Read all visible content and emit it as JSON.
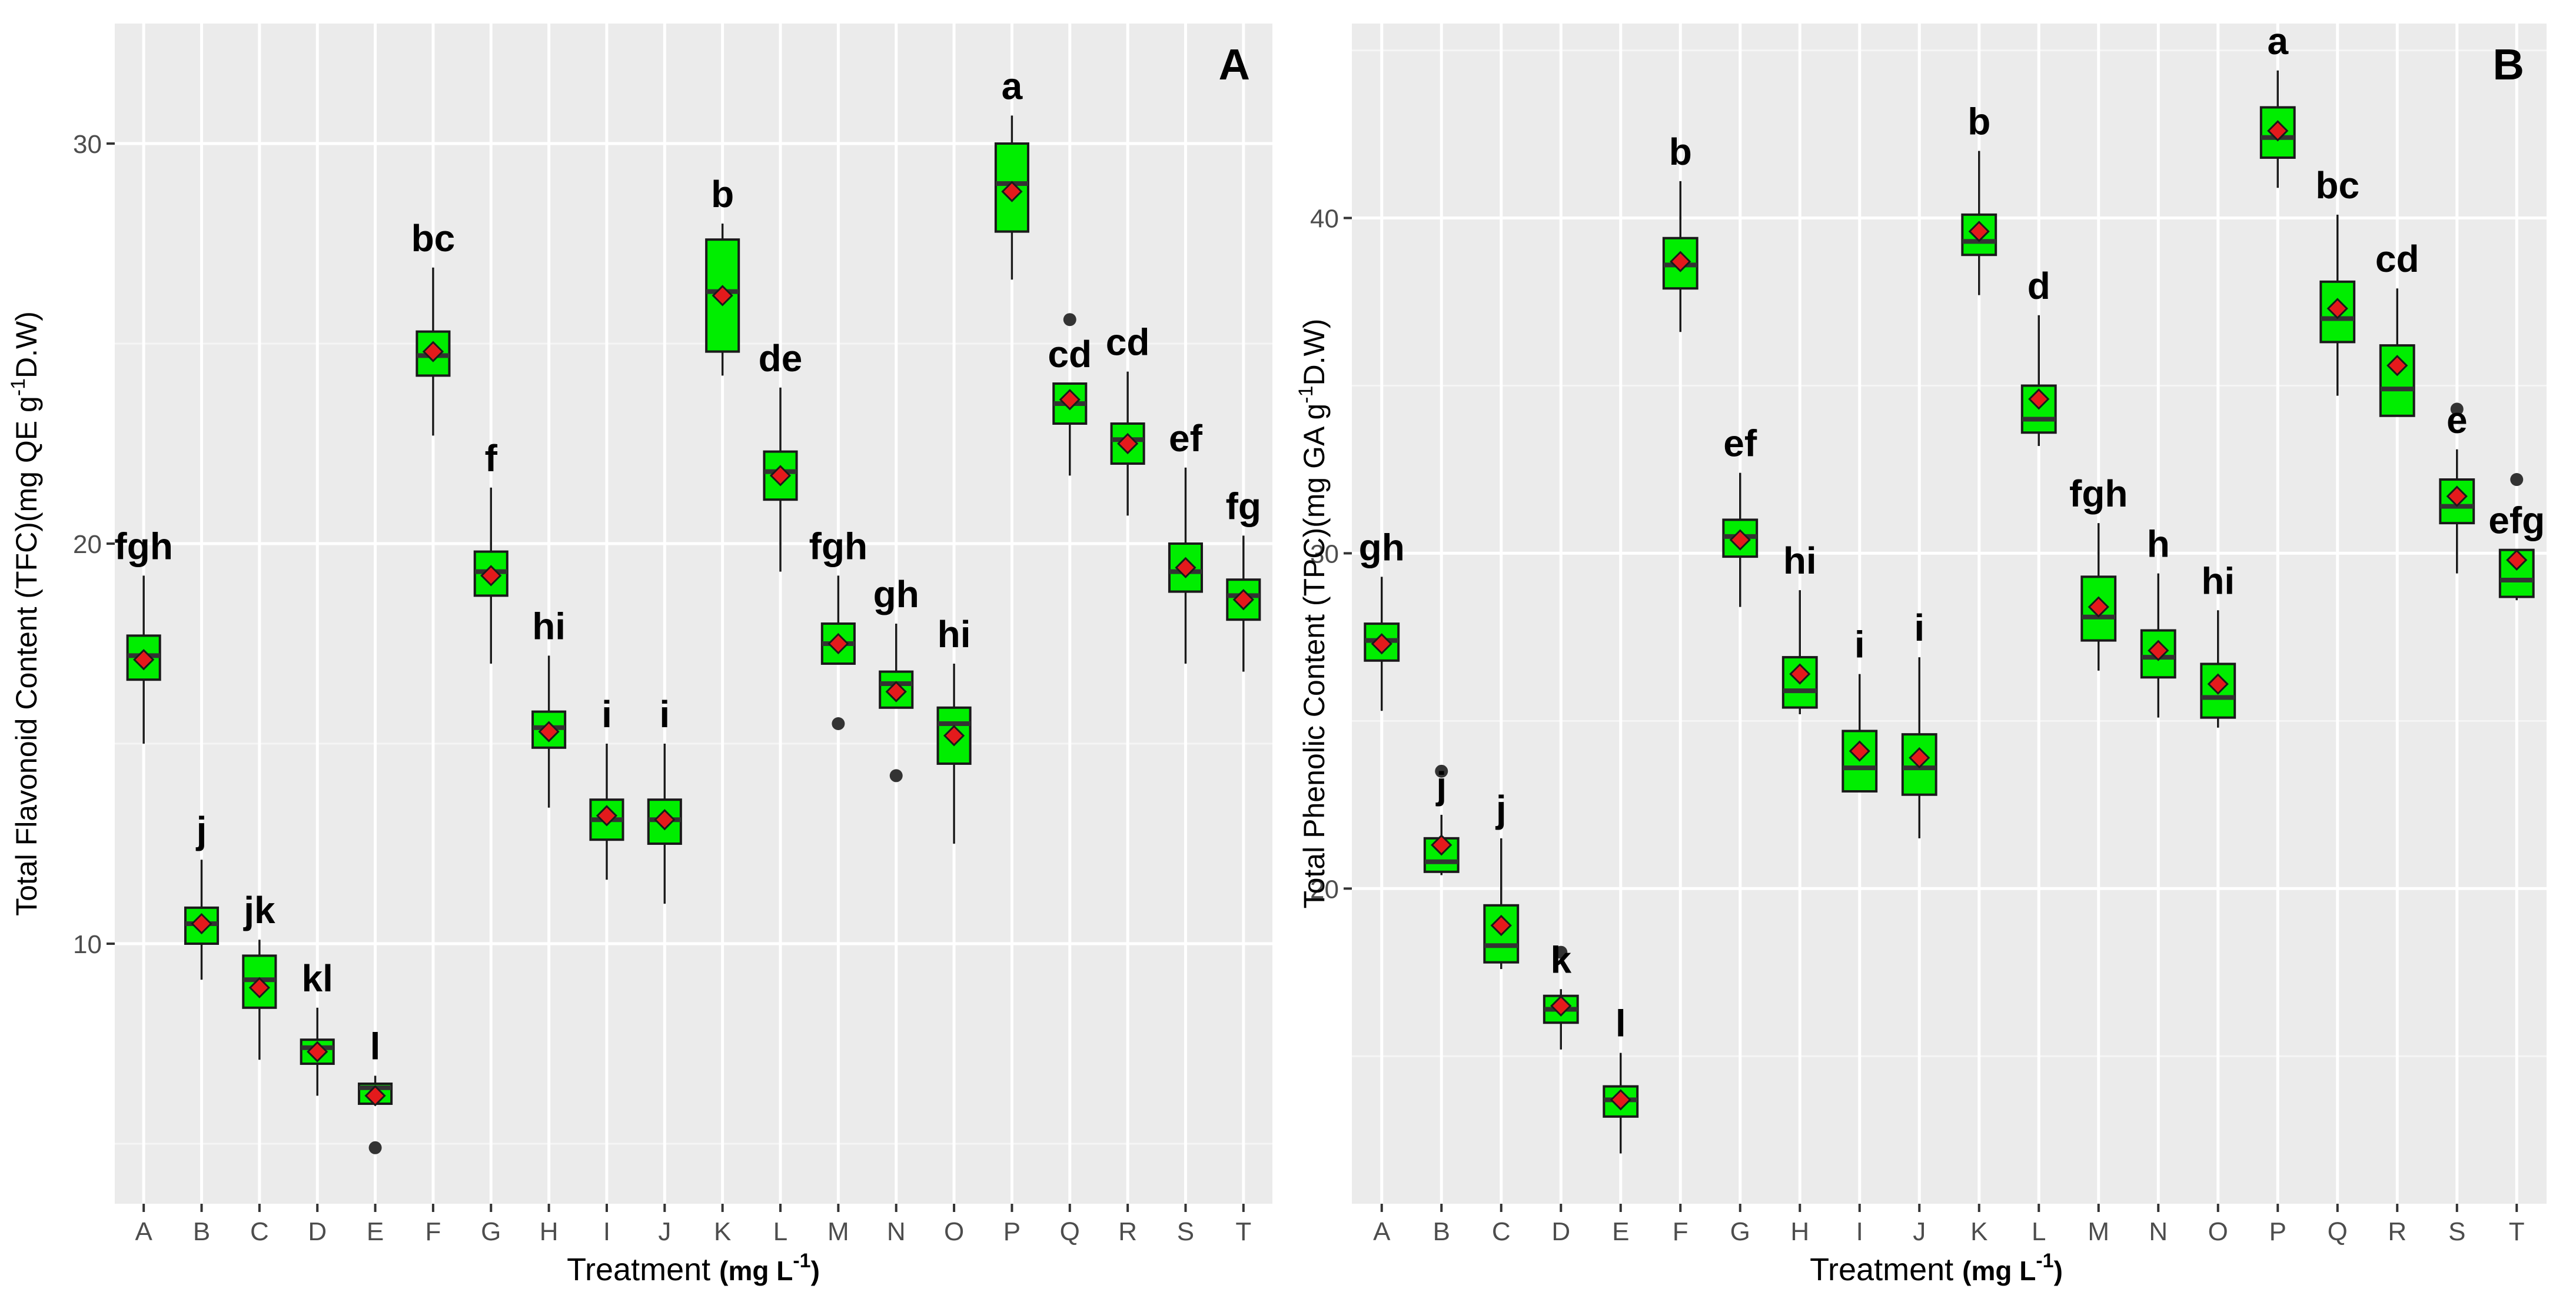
{
  "chart_data": [
    {
      "panel": "A",
      "type": "boxplot",
      "title": "",
      "xlabel": "Treatment",
      "xlabel_unit": {
        "base": "(mg L",
        "sup": "-1",
        "close": ")"
      },
      "ylabel": {
        "pre": "Total Flavonoid Content (TFC)(mg QE g",
        "sup": "-1",
        "post": "D.W)"
      },
      "ylim": [
        3.5,
        33
      ],
      "yticks": [
        10,
        20,
        30
      ],
      "categories": [
        "A",
        "B",
        "C",
        "D",
        "E",
        "F",
        "G",
        "H",
        "I",
        "J",
        "K",
        "L",
        "M",
        "N",
        "O",
        "P",
        "Q",
        "R",
        "S",
        "T"
      ],
      "series": [
        {
          "name": "TFC",
          "box_q1": [
            16.6,
            10.0,
            8.4,
            7.0,
            6.0,
            24.2,
            18.7,
            14.9,
            12.6,
            12.5,
            24.8,
            21.1,
            17.0,
            15.9,
            14.5,
            27.8,
            23.0,
            22.0,
            18.8,
            18.1
          ],
          "box_median": [
            17.2,
            10.5,
            9.1,
            7.4,
            6.4,
            24.7,
            19.3,
            15.4,
            13.1,
            13.1,
            26.3,
            21.8,
            17.5,
            16.5,
            15.5,
            29.0,
            23.5,
            22.6,
            19.3,
            18.7
          ],
          "box_q3": [
            17.7,
            10.9,
            9.7,
            7.6,
            6.5,
            25.3,
            19.8,
            15.8,
            13.6,
            13.6,
            27.6,
            22.3,
            18.0,
            16.8,
            15.9,
            30.0,
            24.0,
            23.0,
            20.0,
            19.1
          ],
          "whisker_low": [
            15.0,
            9.1,
            7.1,
            6.2,
            6.0,
            22.7,
            17.0,
            13.4,
            11.6,
            11.0,
            24.2,
            19.3,
            17.0,
            15.9,
            12.5,
            26.6,
            21.7,
            20.7,
            17.0,
            16.8
          ],
          "whisker_high": [
            19.2,
            12.1,
            10.1,
            8.4,
            6.7,
            26.9,
            21.4,
            17.2,
            15.0,
            15.0,
            28.0,
            23.9,
            19.2,
            18.0,
            17.0,
            30.7,
            24.0,
            24.3,
            21.9,
            20.2
          ],
          "mean": [
            17.1,
            10.5,
            8.9,
            7.3,
            6.2,
            24.8,
            19.2,
            15.3,
            13.2,
            13.1,
            26.2,
            21.7,
            17.5,
            16.3,
            15.2,
            28.8,
            23.6,
            22.5,
            19.4,
            18.6
          ],
          "outliers": [
            [],
            [],
            [],
            [],
            [
              4.9
            ],
            [],
            [],
            [],
            [],
            [],
            [],
            [],
            [
              15.5
            ],
            [
              14.2
            ],
            [],
            [],
            [
              25.6
            ],
            [],
            [],
            []
          ],
          "significance_letters": [
            "fgh",
            "j",
            "jk",
            "kl",
            "l",
            "bc",
            "f",
            "hi",
            "i",
            "i",
            "b",
            "de",
            "fgh",
            "gh",
            "hi",
            "a",
            "cd",
            "cd",
            "ef",
            "fg"
          ]
        }
      ]
    },
    {
      "panel": "B",
      "type": "boxplot",
      "title": "",
      "xlabel": "Treatment",
      "xlabel_unit": {
        "base": "(mg L",
        "sup": "-1",
        "close": ")"
      },
      "ylabel": {
        "pre": "Total Phenolic Content (TPC)(mg GA g",
        "sup": "-1",
        "post": "D.W)"
      },
      "ylim": [
        10.6,
        45.8
      ],
      "yticks": [
        20,
        30,
        40
      ],
      "categories": [
        "A",
        "B",
        "C",
        "D",
        "E",
        "F",
        "G",
        "H",
        "I",
        "J",
        "K",
        "L",
        "M",
        "N",
        "O",
        "P",
        "Q",
        "R",
        "S",
        "T"
      ],
      "series": [
        {
          "name": "TPC",
          "box_q1": [
            26.8,
            20.5,
            17.8,
            16.0,
            13.2,
            37.9,
            29.9,
            25.4,
            22.9,
            22.8,
            38.9,
            33.6,
            27.4,
            26.3,
            25.1,
            41.8,
            36.3,
            34.1,
            30.9,
            28.7
          ],
          "box_median": [
            27.4,
            20.8,
            18.3,
            16.4,
            13.7,
            38.6,
            30.5,
            25.9,
            23.6,
            23.6,
            39.3,
            34.0,
            28.1,
            26.9,
            25.7,
            42.4,
            37.0,
            34.9,
            31.4,
            29.2
          ],
          "box_q3": [
            27.9,
            21.5,
            19.5,
            16.8,
            14.1,
            39.4,
            31.0,
            26.9,
            24.7,
            24.6,
            40.1,
            35.0,
            29.3,
            27.7,
            26.7,
            43.3,
            38.1,
            36.2,
            32.2,
            30.1
          ],
          "whisker_low": [
            25.3,
            20.4,
            17.6,
            15.2,
            12.1,
            36.6,
            28.4,
            25.2,
            22.9,
            21.5,
            37.7,
            33.2,
            26.5,
            25.1,
            24.8,
            40.9,
            34.7,
            34.1,
            29.4,
            28.6
          ],
          "whisker_high": [
            29.3,
            22.2,
            21.5,
            17.0,
            15.1,
            41.1,
            32.4,
            28.9,
            26.4,
            26.9,
            42.0,
            37.1,
            30.9,
            29.4,
            28.3,
            44.4,
            40.1,
            37.9,
            33.1,
            30.1
          ],
          "mean": [
            27.3,
            21.3,
            18.9,
            16.5,
            13.7,
            38.7,
            30.4,
            26.4,
            24.1,
            23.9,
            39.6,
            34.6,
            28.4,
            27.1,
            26.1,
            42.6,
            37.3,
            35.6,
            31.7,
            29.8
          ],
          "outliers": [
            [],
            [
              23.5
            ],
            [],
            [
              18.1
            ],
            [],
            [],
            [],
            [],
            [],
            [],
            [],
            [],
            [],
            [],
            [],
            [],
            [],
            [],
            [
              34.3
            ],
            [
              32.2
            ]
          ],
          "significance_letters": [
            "gh",
            "j",
            "j",
            "k",
            "l",
            "b",
            "ef",
            "hi",
            "i",
            "i",
            "b",
            "d",
            "fgh",
            "h",
            "hi",
            "a",
            "bc",
            "cd",
            "e",
            "efg"
          ]
        }
      ]
    }
  ],
  "colors": {
    "panel_bg": "#ebebeb",
    "grid_major": "#ffffff",
    "grid_minor": "#f5f5f5",
    "box_fill": "#00ee00",
    "box_stroke": "#1a1a1a",
    "mean_marker": "#e41a1c",
    "outlier": "#333333",
    "axis_text": "#4d4d4d",
    "label_text": "#000000"
  }
}
